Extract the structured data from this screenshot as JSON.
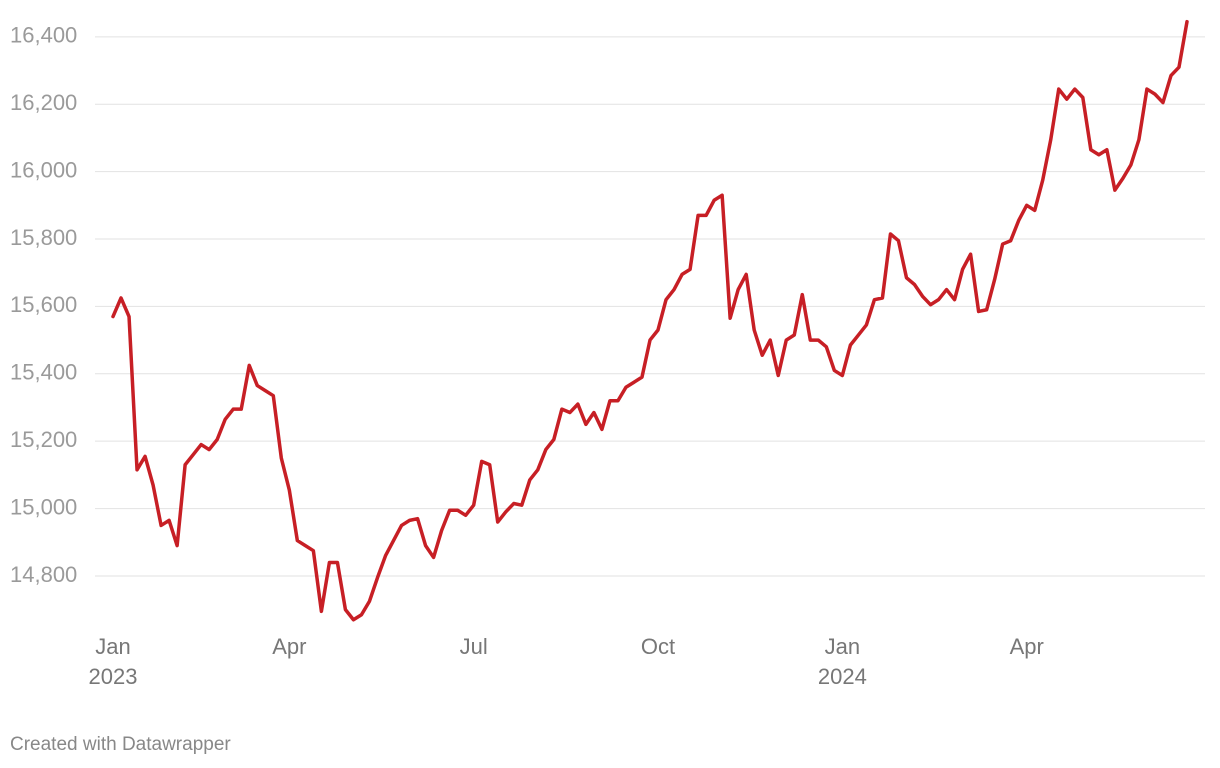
{
  "chart_data": {
    "type": "line",
    "categories": [
      "Jan 2023",
      null,
      null,
      null,
      null,
      null,
      null,
      null,
      null,
      null,
      null,
      null,
      null,
      null,
      null,
      null,
      null,
      null,
      null,
      null,
      null,
      null,
      "Apr",
      null,
      null,
      null,
      null,
      null,
      null,
      null,
      null,
      null,
      null,
      null,
      null,
      null,
      null,
      null,
      null,
      null,
      null,
      null,
      null,
      null,
      null,
      "Jul",
      null,
      null,
      null,
      null,
      null,
      null,
      null,
      null,
      null,
      null,
      null,
      null,
      null,
      null,
      null,
      null,
      null,
      null,
      null,
      null,
      null,
      null,
      "Oct",
      null,
      null,
      null,
      null,
      null,
      null,
      null,
      null,
      null,
      null,
      null,
      null,
      null,
      null,
      null,
      null,
      null,
      null,
      null,
      null,
      null,
      null,
      "Jan 2024",
      null,
      null,
      null,
      null,
      null,
      null,
      null,
      null,
      null,
      null,
      null,
      null,
      null,
      null,
      null,
      null,
      null,
      null,
      null,
      null,
      null,
      null,
      "Apr",
      null,
      null,
      null,
      null,
      null,
      null,
      null,
      null,
      null,
      null,
      null,
      null,
      null,
      null,
      null,
      null,
      null,
      null,
      null,
      null
    ],
    "values": [
      15570,
      15625,
      15570,
      15115,
      15155,
      15070,
      14950,
      14965,
      14890,
      15130,
      15160,
      15190,
      15175,
      15205,
      15265,
      15295,
      15295,
      15425,
      15365,
      15350,
      15335,
      15150,
      15055,
      14905,
      14890,
      14875,
      14695,
      14840,
      14840,
      14700,
      14670,
      14685,
      14725,
      14795,
      14860,
      14905,
      14950,
      14965,
      14970,
      14890,
      14855,
      14935,
      14995,
      14995,
      14980,
      15010,
      15140,
      15130,
      14960,
      14990,
      15015,
      15010,
      15085,
      15115,
      15175,
      15205,
      15295,
      15285,
      15310,
      15250,
      15285,
      15235,
      15320,
      15320,
      15360,
      15375,
      15390,
      15500,
      15530,
      15620,
      15650,
      15695,
      15710,
      15870,
      15870,
      15915,
      15930,
      15565,
      15650,
      15695,
      15530,
      15455,
      15500,
      15395,
      15500,
      15515,
      15635,
      15500,
      15500,
      15480,
      15410,
      15395,
      15485,
      15515,
      15545,
      15620,
      15625,
      15815,
      15795,
      15685,
      15665,
      15630,
      15605,
      15620,
      15650,
      15620,
      15710,
      15755,
      15585,
      15590,
      15680,
      15785,
      15795,
      15855,
      15900,
      15885,
      15975,
      16095,
      16245,
      16215,
      16245,
      16220,
      16065,
      16050,
      16065,
      15945,
      15980,
      16020,
      16095,
      16245,
      16230,
      16205,
      16285,
      16310,
      16445
    ],
    "color": "#c71f25",
    "ylim": [
      14650,
      16450
    ],
    "yticks": [
      {
        "value": 14800,
        "label": "14,800"
      },
      {
        "value": 15000,
        "label": "15,000"
      },
      {
        "value": 15200,
        "label": "15,200"
      },
      {
        "value": 15400,
        "label": "15,400"
      },
      {
        "value": 15600,
        "label": "15,600"
      },
      {
        "value": 15800,
        "label": "15,800"
      },
      {
        "value": 16000,
        "label": "16,000"
      },
      {
        "value": 16200,
        "label": "16,200"
      },
      {
        "value": 16400,
        "label": "16,400"
      }
    ],
    "grid": true,
    "source": "Created with Datawrapper"
  }
}
